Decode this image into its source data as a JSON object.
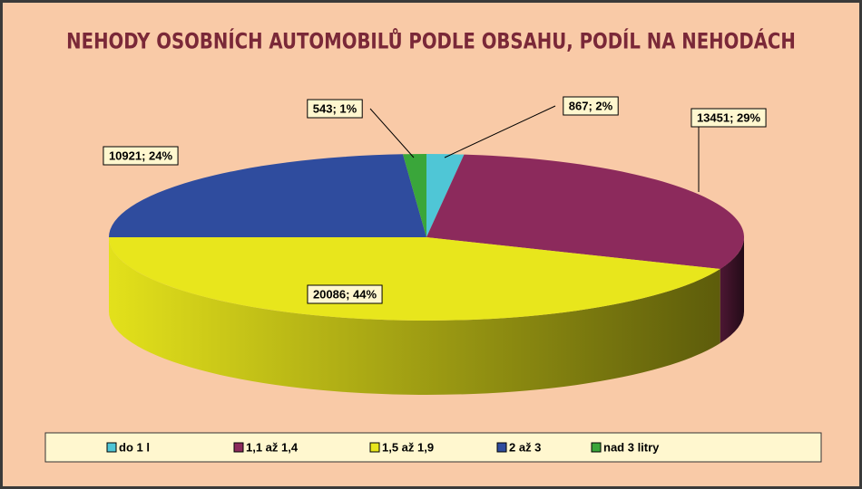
{
  "chart_data": {
    "type": "pie3d",
    "title": "NEHODY OSOBNÍCH AUTOMOBILŮ PODLE OBSAHU, PODÍL NA NEHODÁCH",
    "categories": [
      "do 1 l",
      "1,1 až 1,4",
      "1,5 až 1,9",
      "2 až 3",
      "nad 3 litry"
    ],
    "values": [
      867,
      13451,
      20086,
      10921,
      543
    ],
    "value_labels": [
      "867; 2%",
      "13451; 29%",
      "20086; 44%",
      "10921; 24%",
      "543; 1%"
    ],
    "colors": [
      "#4fc6d6",
      "#8c2a5c",
      "#e8e61c",
      "#2f4c9e",
      "#3aa63a"
    ],
    "legend": "bottom"
  }
}
